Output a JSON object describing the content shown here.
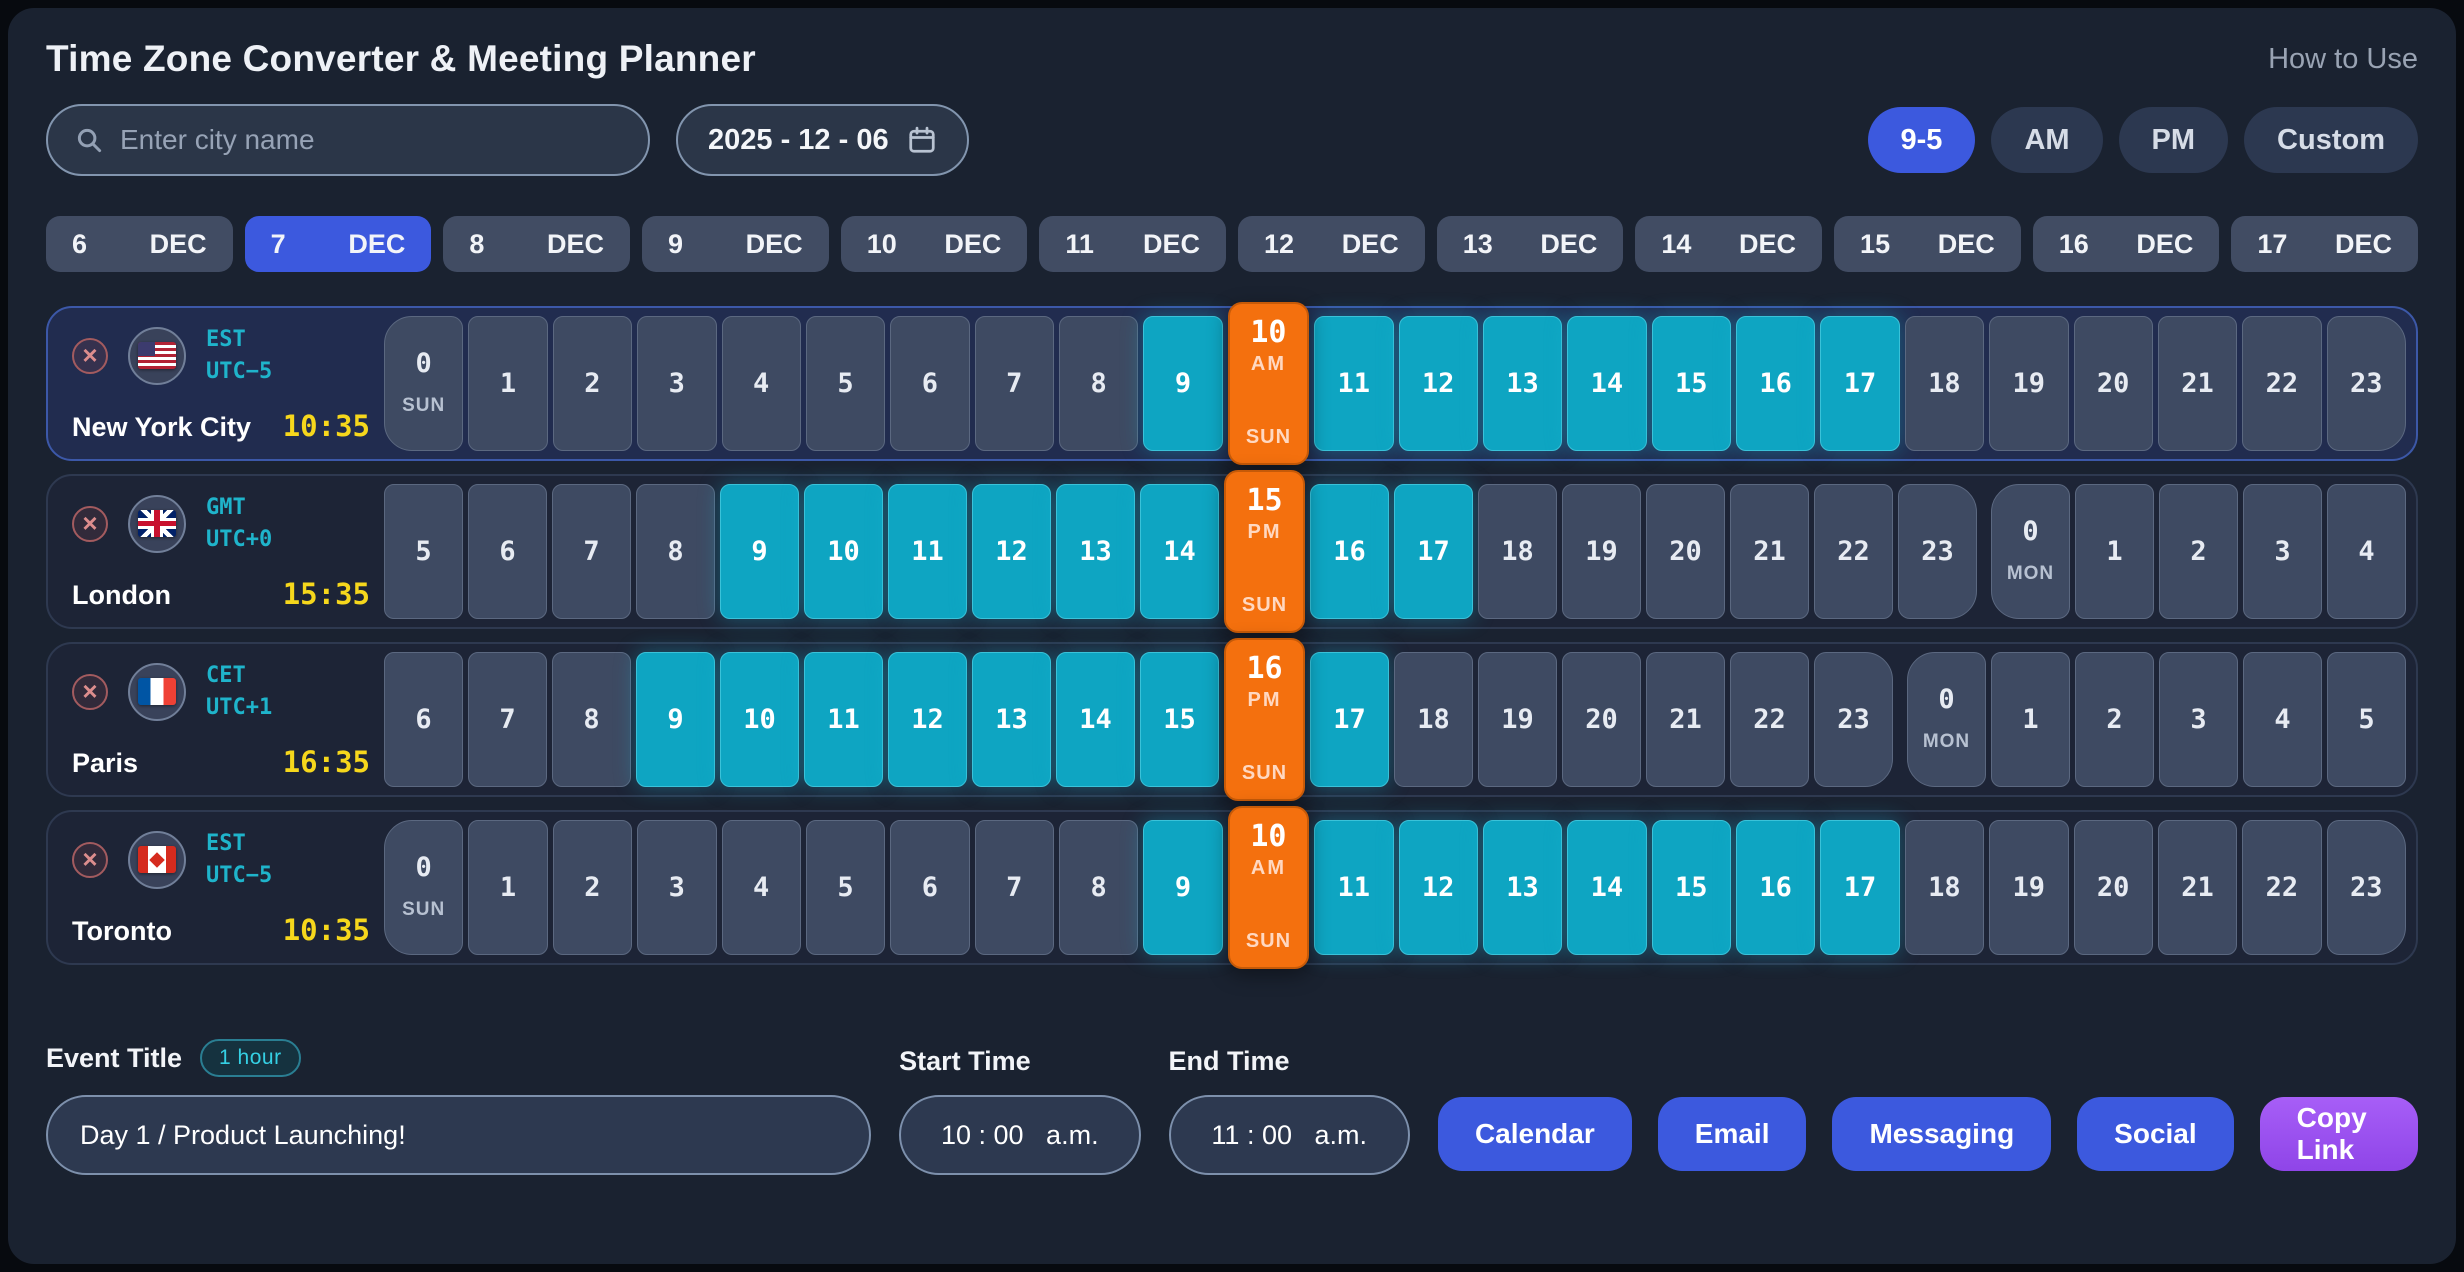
{
  "app": {
    "title": "Time Zone Converter & Meeting Planner",
    "help_label": "How to Use"
  },
  "controls": {
    "search_placeholder": "Enter city name",
    "date_value": "2025 - 12 - 06",
    "presets": [
      {
        "label": "9-5",
        "active": true
      },
      {
        "label": "AM",
        "active": false
      },
      {
        "label": "PM",
        "active": false
      },
      {
        "label": "Custom",
        "active": false
      }
    ]
  },
  "date_strip": {
    "month": "DEC",
    "days": [
      "6",
      "7",
      "8",
      "9",
      "10",
      "11",
      "12",
      "13",
      "14",
      "15",
      "16",
      "17"
    ],
    "selected_day": "7"
  },
  "timezones": [
    {
      "city": "New York City",
      "tz_abbr": "EST",
      "utc_offset": "UTC−5",
      "local_time": "10:35",
      "flag": "us",
      "home": true,
      "cells": [
        {
          "hour": "0",
          "state": "dim",
          "day": "SUN",
          "edge": "start"
        },
        {
          "hour": "1",
          "state": "dim"
        },
        {
          "hour": "2",
          "state": "dim"
        },
        {
          "hour": "3",
          "state": "dim"
        },
        {
          "hour": "4",
          "state": "dim"
        },
        {
          "hour": "5",
          "state": "dim"
        },
        {
          "hour": "6",
          "state": "dim"
        },
        {
          "hour": "7",
          "state": "dim"
        },
        {
          "hour": "8",
          "state": "dim"
        },
        {
          "hour": "9",
          "state": "work"
        },
        {
          "hour": "10",
          "state": "sel",
          "meridiem": "AM",
          "day": "SUN"
        },
        {
          "hour": "11",
          "state": "work"
        },
        {
          "hour": "12",
          "state": "work"
        },
        {
          "hour": "13",
          "state": "work"
        },
        {
          "hour": "14",
          "state": "work"
        },
        {
          "hour": "15",
          "state": "work"
        },
        {
          "hour": "16",
          "state": "work"
        },
        {
          "hour": "17",
          "state": "work"
        },
        {
          "hour": "18",
          "state": "dim"
        },
        {
          "hour": "19",
          "state": "dim"
        },
        {
          "hour": "20",
          "state": "dim"
        },
        {
          "hour": "21",
          "state": "dim"
        },
        {
          "hour": "22",
          "state": "dim"
        },
        {
          "hour": "23",
          "state": "dim",
          "edge": "end"
        }
      ]
    },
    {
      "city": "London",
      "tz_abbr": "GMT",
      "utc_offset": "UTC+0",
      "local_time": "15:35",
      "flag": "uk",
      "home": false,
      "cells": [
        {
          "hour": "5",
          "state": "dim"
        },
        {
          "hour": "6",
          "state": "dim"
        },
        {
          "hour": "7",
          "state": "dim"
        },
        {
          "hour": "8",
          "state": "dim"
        },
        {
          "hour": "9",
          "state": "work"
        },
        {
          "hour": "10",
          "state": "work"
        },
        {
          "hour": "11",
          "state": "work"
        },
        {
          "hour": "12",
          "state": "work"
        },
        {
          "hour": "13",
          "state": "work"
        },
        {
          "hour": "14",
          "state": "work"
        },
        {
          "hour": "15",
          "state": "sel",
          "meridiem": "PM",
          "day": "SUN"
        },
        {
          "hour": "16",
          "state": "work"
        },
        {
          "hour": "17",
          "state": "work"
        },
        {
          "hour": "18",
          "state": "dim"
        },
        {
          "hour": "19",
          "state": "dim"
        },
        {
          "hour": "20",
          "state": "dim"
        },
        {
          "hour": "21",
          "state": "dim"
        },
        {
          "hour": "22",
          "state": "dim"
        },
        {
          "hour": "23",
          "state": "dim",
          "edge": "end"
        },
        {
          "hour": "0",
          "state": "dim",
          "day": "MON",
          "edge": "start"
        },
        {
          "hour": "1",
          "state": "dim"
        },
        {
          "hour": "2",
          "state": "dim"
        },
        {
          "hour": "3",
          "state": "dim"
        },
        {
          "hour": "4",
          "state": "dim"
        }
      ]
    },
    {
      "city": "Paris",
      "tz_abbr": "CET",
      "utc_offset": "UTC+1",
      "local_time": "16:35",
      "flag": "fr",
      "home": false,
      "cells": [
        {
          "hour": "6",
          "state": "dim"
        },
        {
          "hour": "7",
          "state": "dim"
        },
        {
          "hour": "8",
          "state": "dim"
        },
        {
          "hour": "9",
          "state": "work"
        },
        {
          "hour": "10",
          "state": "work"
        },
        {
          "hour": "11",
          "state": "work"
        },
        {
          "hour": "12",
          "state": "work"
        },
        {
          "hour": "13",
          "state": "work"
        },
        {
          "hour": "14",
          "state": "work"
        },
        {
          "hour": "15",
          "state": "work"
        },
        {
          "hour": "16",
          "state": "sel",
          "meridiem": "PM",
          "day": "SUN"
        },
        {
          "hour": "17",
          "state": "work"
        },
        {
          "hour": "18",
          "state": "dim"
        },
        {
          "hour": "19",
          "state": "dim"
        },
        {
          "hour": "20",
          "state": "dim"
        },
        {
          "hour": "21",
          "state": "dim"
        },
        {
          "hour": "22",
          "state": "dim"
        },
        {
          "hour": "23",
          "state": "dim",
          "edge": "end"
        },
        {
          "hour": "0",
          "state": "dim",
          "day": "MON",
          "edge": "start"
        },
        {
          "hour": "1",
          "state": "dim"
        },
        {
          "hour": "2",
          "state": "dim"
        },
        {
          "hour": "3",
          "state": "dim"
        },
        {
          "hour": "4",
          "state": "dim"
        },
        {
          "hour": "5",
          "state": "dim"
        }
      ]
    },
    {
      "city": "Toronto",
      "tz_abbr": "EST",
      "utc_offset": "UTC−5",
      "local_time": "10:35",
      "flag": "ca",
      "home": false,
      "cells": [
        {
          "hour": "0",
          "state": "dim",
          "day": "SUN",
          "edge": "start"
        },
        {
          "hour": "1",
          "state": "dim"
        },
        {
          "hour": "2",
          "state": "dim"
        },
        {
          "hour": "3",
          "state": "dim"
        },
        {
          "hour": "4",
          "state": "dim"
        },
        {
          "hour": "5",
          "state": "dim"
        },
        {
          "hour": "6",
          "state": "dim"
        },
        {
          "hour": "7",
          "state": "dim"
        },
        {
          "hour": "8",
          "state": "dim"
        },
        {
          "hour": "9",
          "state": "work"
        },
        {
          "hour": "10",
          "state": "sel",
          "meridiem": "AM",
          "day": "SUN"
        },
        {
          "hour": "11",
          "state": "work"
        },
        {
          "hour": "12",
          "state": "work"
        },
        {
          "hour": "13",
          "state": "work"
        },
        {
          "hour": "14",
          "state": "work"
        },
        {
          "hour": "15",
          "state": "work"
        },
        {
          "hour": "16",
          "state": "work"
        },
        {
          "hour": "17",
          "state": "work"
        },
        {
          "hour": "18",
          "state": "dim"
        },
        {
          "hour": "19",
          "state": "dim"
        },
        {
          "hour": "20",
          "state": "dim"
        },
        {
          "hour": "21",
          "state": "dim"
        },
        {
          "hour": "22",
          "state": "dim"
        },
        {
          "hour": "23",
          "state": "dim",
          "edge": "end"
        }
      ]
    }
  ],
  "footer": {
    "event_label": "Event Title",
    "duration_badge": "1 hour",
    "event_value": "Day 1 / Product Launching!",
    "start_label": "Start Time",
    "start_value": "10 : 00   a.m.",
    "end_label": "End Time",
    "end_value": "11 : 00   a.m.",
    "share_buttons": [
      {
        "label": "Calendar",
        "style": "blue"
      },
      {
        "label": "Email",
        "style": "blue"
      },
      {
        "label": "Messaging",
        "style": "blue"
      },
      {
        "label": "Social",
        "style": "blue"
      },
      {
        "label": "Copy Link",
        "style": "purple"
      }
    ]
  },
  "colors": {
    "accent_blue": "#3c59de",
    "work_cyan": "#0ea5c2",
    "selected_orange": "#f4700e",
    "time_yellow": "#f6d71c",
    "link_purple": "#9b51f0"
  }
}
